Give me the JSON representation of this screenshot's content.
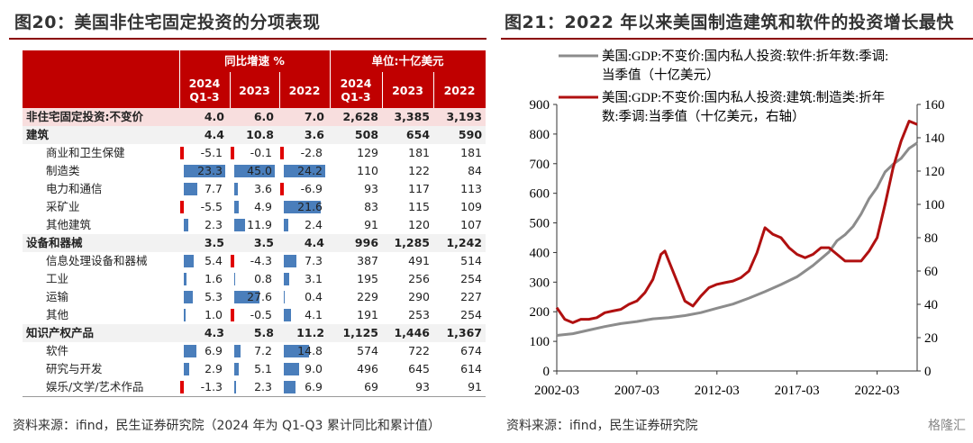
{
  "left": {
    "title": "图20：美国非住宅固定投资的分项表现",
    "source": "资料来源：ifind，民生证券研究院（2024 年为 Q1-Q3 累计同比和累计值）",
    "header_groups": [
      "同比增速 %",
      "单位:十亿美元"
    ],
    "col_headers": [
      "2024 Q1-3",
      "2023",
      "2022",
      "2024 Q1-3",
      "2023",
      "2022"
    ],
    "rows": [
      {
        "label": "非住宅固定投资:不变价",
        "type": "top",
        "growth": [
          "4.0",
          "6.0",
          "7.0"
        ],
        "levels": [
          "2,628",
          "3,385",
          "3,193"
        ]
      },
      {
        "label": "建筑",
        "type": "cat",
        "growth": [
          "4.4",
          "10.8",
          "3.6"
        ],
        "levels": [
          "508",
          "654",
          "590"
        ]
      },
      {
        "label": "商业和卫生保健",
        "type": "sub",
        "growth": [
          "-5.1",
          "-0.1",
          "-2.8"
        ],
        "levels": [
          "129",
          "181",
          "181"
        ]
      },
      {
        "label": "制造类",
        "type": "sub",
        "growth": [
          "23.3",
          "45.0",
          "24.2"
        ],
        "levels": [
          "110",
          "122",
          "84"
        ]
      },
      {
        "label": "电力和通信",
        "type": "sub",
        "growth": [
          "7.7",
          "3.6",
          "-6.9"
        ],
        "levels": [
          "93",
          "117",
          "113"
        ]
      },
      {
        "label": "采矿业",
        "type": "sub",
        "growth": [
          "-5.5",
          "4.9",
          "21.6"
        ],
        "levels": [
          "83",
          "115",
          "109"
        ]
      },
      {
        "label": "其他建筑",
        "type": "sub",
        "growth": [
          "2.3",
          "11.9",
          "2.4"
        ],
        "levels": [
          "91",
          "120",
          "107"
        ]
      },
      {
        "label": "设备和器械",
        "type": "cat",
        "growth": [
          "3.5",
          "3.5",
          "4.4"
        ],
        "levels": [
          "996",
          "1,285",
          "1,242"
        ]
      },
      {
        "label": "信息处理设备和器械",
        "type": "sub",
        "growth": [
          "5.4",
          "-4.3",
          "7.3"
        ],
        "levels": [
          "387",
          "491",
          "514"
        ]
      },
      {
        "label": "工业",
        "type": "sub",
        "growth": [
          "1.6",
          "0.8",
          "3.1"
        ],
        "levels": [
          "195",
          "256",
          "254"
        ]
      },
      {
        "label": "运输",
        "type": "sub",
        "growth": [
          "5.3",
          "27.6",
          "0.4"
        ],
        "levels": [
          "229",
          "290",
          "227"
        ]
      },
      {
        "label": "其他",
        "type": "sub",
        "growth": [
          "1.0",
          "-0.5",
          "4.1"
        ],
        "levels": [
          "191",
          "253",
          "254"
        ]
      },
      {
        "label": "知识产权产品",
        "type": "cat",
        "growth": [
          "4.3",
          "5.8",
          "11.2"
        ],
        "levels": [
          "1,125",
          "1,446",
          "1,367"
        ]
      },
      {
        "label": "软件",
        "type": "sub",
        "growth": [
          "6.9",
          "7.2",
          "14.8"
        ],
        "levels": [
          "574",
          "722",
          "674"
        ]
      },
      {
        "label": "研究与开发",
        "type": "sub",
        "growth": [
          "2.9",
          "5.1",
          "9.0"
        ],
        "levels": [
          "496",
          "645",
          "614"
        ]
      },
      {
        "label": "娱乐/文学/艺术作品",
        "type": "sub",
        "growth": [
          "-1.3",
          "2.3",
          "6.9"
        ],
        "levels": [
          "69",
          "93",
          "91"
        ]
      }
    ],
    "colors": {
      "header": "#c00000",
      "pos_bar": "#4a7ebb",
      "neg_bar": "#e00000"
    }
  },
  "right": {
    "title": "图21：2022 年以来美国制造建筑和软件的投资增长最快",
    "source": "资料来源：ifind，民生证券研究院",
    "watermark": "格隆汇"
  },
  "chart_data": {
    "type": "line",
    "x_tick_labels": [
      "2002-03",
      "2007-03",
      "2012-03",
      "2017-03",
      "2022-03"
    ],
    "x_range": [
      "2002-03",
      "2024-09"
    ],
    "left_axis": {
      "ticks": [
        "0",
        "100",
        "200",
        "300",
        "400",
        "500",
        "600",
        "700",
        "800",
        "900"
      ],
      "ylim": [
        0,
        900
      ]
    },
    "right_axis": {
      "ticks": [
        "0",
        "20",
        "40",
        "60",
        "80",
        "100",
        "120",
        "140",
        "160"
      ],
      "ylim": [
        0,
        160
      ]
    },
    "legend_position": "top",
    "series": [
      {
        "name": "美国:GDP:不变价:国内私人投资:软件:折年数:季调:当季值（十亿美元）",
        "axis": "left",
        "color": "#8c8c8c",
        "points": [
          [
            "2002-03",
            120
          ],
          [
            "2003-03",
            126
          ],
          [
            "2004-03",
            138
          ],
          [
            "2005-03",
            150
          ],
          [
            "2006-03",
            160
          ],
          [
            "2007-03",
            167
          ],
          [
            "2008-03",
            176
          ],
          [
            "2009-03",
            180
          ],
          [
            "2010-03",
            187
          ],
          [
            "2011-03",
            197
          ],
          [
            "2012-03",
            212
          ],
          [
            "2013-03",
            226
          ],
          [
            "2014-03",
            246
          ],
          [
            "2015-03",
            268
          ],
          [
            "2016-03",
            292
          ],
          [
            "2017-03",
            318
          ],
          [
            "2018-03",
            356
          ],
          [
            "2019-03",
            402
          ],
          [
            "2019-09",
            440
          ],
          [
            "2020-03",
            460
          ],
          [
            "2020-09",
            488
          ],
          [
            "2021-03",
            530
          ],
          [
            "2021-09",
            582
          ],
          [
            "2022-03",
            620
          ],
          [
            "2022-09",
            672
          ],
          [
            "2023-03",
            698
          ],
          [
            "2023-09",
            718
          ],
          [
            "2024-03",
            752
          ],
          [
            "2024-09",
            770
          ]
        ]
      },
      {
        "name": "美国:GDP:不变价:国内私人投资:建筑:制造类:折年数:季调:当季值（十亿美元，右轴）",
        "axis": "right",
        "color": "#b01010",
        "points": [
          [
            "2002-03",
            38
          ],
          [
            "2002-09",
            31
          ],
          [
            "2003-03",
            29
          ],
          [
            "2003-09",
            31
          ],
          [
            "2004-03",
            31
          ],
          [
            "2004-09",
            32
          ],
          [
            "2005-03",
            35
          ],
          [
            "2005-09",
            36
          ],
          [
            "2006-03",
            37
          ],
          [
            "2006-09",
            40
          ],
          [
            "2007-03",
            42
          ],
          [
            "2007-09",
            47
          ],
          [
            "2008-03",
            55
          ],
          [
            "2008-09",
            70
          ],
          [
            "2008-12",
            72
          ],
          [
            "2009-03",
            66
          ],
          [
            "2009-09",
            54
          ],
          [
            "2010-03",
            42
          ],
          [
            "2010-09",
            39
          ],
          [
            "2011-03",
            45
          ],
          [
            "2011-09",
            50
          ],
          [
            "2012-03",
            52
          ],
          [
            "2012-09",
            53
          ],
          [
            "2013-03",
            54
          ],
          [
            "2013-09",
            56
          ],
          [
            "2014-03",
            60
          ],
          [
            "2014-09",
            71
          ],
          [
            "2015-03",
            86
          ],
          [
            "2015-09",
            82
          ],
          [
            "2016-03",
            80
          ],
          [
            "2016-09",
            74
          ],
          [
            "2017-03",
            70
          ],
          [
            "2017-09",
            68
          ],
          [
            "2018-03",
            70
          ],
          [
            "2018-09",
            74
          ],
          [
            "2019-03",
            74
          ],
          [
            "2019-09",
            70
          ],
          [
            "2020-03",
            66
          ],
          [
            "2020-09",
            66
          ],
          [
            "2021-03",
            66
          ],
          [
            "2021-09",
            72
          ],
          [
            "2022-03",
            80
          ],
          [
            "2022-09",
            100
          ],
          [
            "2023-03",
            122
          ],
          [
            "2023-09",
            138
          ],
          [
            "2024-03",
            150
          ],
          [
            "2024-09",
            148
          ]
        ]
      }
    ]
  }
}
